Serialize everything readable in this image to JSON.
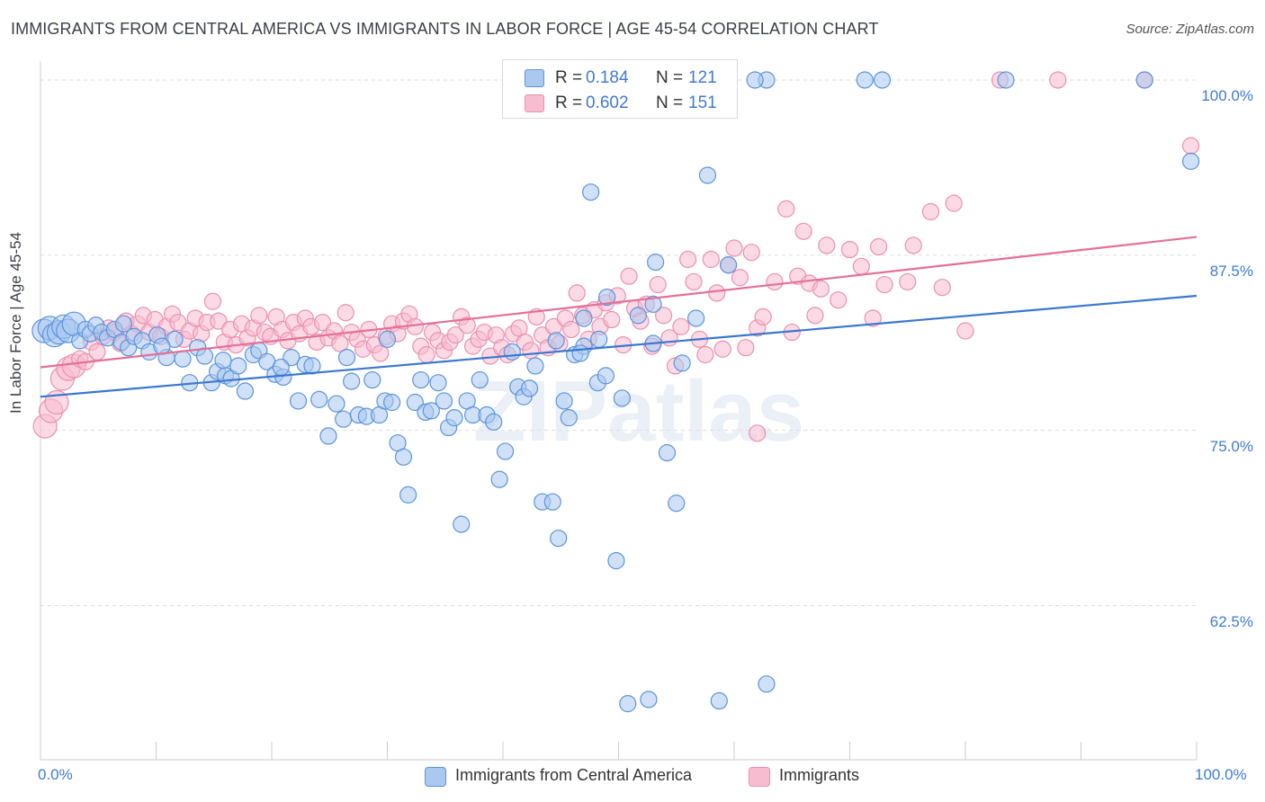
{
  "title": "IMMIGRANTS FROM CENTRAL AMERICA VS IMMIGRANTS IN LABOR FORCE | AGE 45-54 CORRELATION CHART",
  "source": "Source: ZipAtlas.com",
  "watermark": "ZIPatlas",
  "colors": {
    "blue_fill": "#aac8f0",
    "blue_stroke": "#5b93dc",
    "blue_line": "#3a78d0",
    "pink_fill": "#f7bcd0",
    "pink_stroke": "#ec8fb0",
    "pink_line": "#e46f98",
    "tick_text": "#3d7bd4",
    "grid": "#dddddd"
  },
  "stats": {
    "r_label": "R =",
    "n_label": "N =",
    "rows": [
      {
        "r": "0.184",
        "n": "121",
        "color": "blue"
      },
      {
        "r": "0.602",
        "n": "151",
        "color": "pink"
      }
    ]
  },
  "legend": {
    "series1": "Immigrants from Central America",
    "series2": "Immigrants"
  },
  "chart_data": {
    "type": "scatter",
    "title": "IMMIGRANTS FROM CENTRAL AMERICA VS IMMIGRANTS IN LABOR FORCE | AGE 45-54 CORRELATION CHART",
    "xlabel": "",
    "ylabel": "In Labor Force | Age 45-54",
    "xlim": [
      0,
      100
    ],
    "ylim": [
      51.5,
      102.5
    ],
    "x_tick_labels": [
      "0.0%",
      "100.0%"
    ],
    "y_ticks": [
      62.5,
      75.0,
      87.5,
      100.0
    ],
    "y_tick_labels": [
      "62.5%",
      "75.0%",
      "87.5%",
      "100.0%"
    ],
    "grid": "horizontal dashed",
    "legend_position": "bottom-center",
    "series": [
      {
        "name": "Immigrants from Central America",
        "color": "blue",
        "trend": {
          "x": [
            0,
            100
          ],
          "y": [
            77.4,
            84.6
          ]
        },
        "points": [
          [
            0.3,
            82.1
          ],
          [
            0.8,
            82.3
          ],
          [
            1.2,
            81.8
          ],
          [
            1.6,
            82.0
          ],
          [
            2.0,
            82.4
          ],
          [
            2.4,
            82.1
          ],
          [
            2.9,
            82.6
          ],
          [
            3.4,
            81.4
          ],
          [
            3.9,
            82.2
          ],
          [
            4.3,
            81.9
          ],
          [
            4.8,
            82.5
          ],
          [
            5.3,
            82.0
          ],
          [
            5.8,
            81.6
          ],
          [
            6.4,
            82.2
          ],
          [
            7.0,
            81.3
          ],
          [
            7.6,
            80.9
          ],
          [
            8.1,
            81.7
          ],
          [
            8.8,
            81.4
          ],
          [
            9.4,
            80.6
          ],
          [
            10.1,
            81.8
          ],
          [
            10.9,
            80.2
          ],
          [
            11.6,
            81.5
          ],
          [
            12.3,
            80.1
          ],
          [
            12.9,
            78.4
          ],
          [
            13.6,
            80.9
          ],
          [
            14.2,
            80.3
          ],
          [
            14.8,
            78.4
          ],
          [
            15.3,
            79.2
          ],
          [
            16.0,
            78.9
          ],
          [
            16.5,
            78.7
          ],
          [
            17.1,
            79.6
          ],
          [
            17.7,
            77.8
          ],
          [
            18.4,
            80.4
          ],
          [
            18.9,
            80.7
          ],
          [
            19.6,
            79.9
          ],
          [
            20.3,
            79.0
          ],
          [
            21.0,
            78.8
          ],
          [
            21.7,
            80.2
          ],
          [
            22.3,
            77.1
          ],
          [
            22.9,
            79.7
          ],
          [
            23.5,
            79.6
          ],
          [
            24.1,
            77.2
          ],
          [
            24.9,
            74.6
          ],
          [
            25.6,
            76.9
          ],
          [
            26.2,
            75.8
          ],
          [
            26.9,
            78.5
          ],
          [
            27.5,
            76.1
          ],
          [
            28.2,
            76.0
          ],
          [
            28.7,
            78.6
          ],
          [
            29.3,
            76.1
          ],
          [
            29.8,
            77.1
          ],
          [
            30.4,
            77.0
          ],
          [
            30.9,
            74.1
          ],
          [
            31.4,
            73.1
          ],
          [
            31.8,
            70.4
          ],
          [
            32.4,
            77.0
          ],
          [
            32.9,
            78.6
          ],
          [
            33.3,
            76.3
          ],
          [
            33.8,
            76.4
          ],
          [
            34.4,
            78.4
          ],
          [
            34.9,
            77.1
          ],
          [
            35.3,
            75.2
          ],
          [
            35.8,
            75.9
          ],
          [
            36.4,
            68.3
          ],
          [
            36.9,
            77.1
          ],
          [
            37.4,
            76.1
          ],
          [
            38.0,
            78.6
          ],
          [
            38.6,
            76.1
          ],
          [
            39.2,
            75.6
          ],
          [
            39.7,
            71.5
          ],
          [
            40.2,
            73.5
          ],
          [
            40.8,
            80.6
          ],
          [
            41.3,
            78.1
          ],
          [
            41.8,
            77.4
          ],
          [
            42.3,
            78.0
          ],
          [
            42.8,
            79.6
          ],
          [
            43.4,
            69.9
          ],
          [
            44.3,
            69.9
          ],
          [
            44.8,
            67.3
          ],
          [
            45.3,
            77.1
          ],
          [
            45.7,
            75.9
          ],
          [
            46.2,
            80.4
          ],
          [
            47.0,
            83.0
          ],
          [
            47.6,
            92.0
          ],
          [
            48.2,
            78.4
          ],
          [
            48.9,
            78.9
          ],
          [
            49.8,
            65.7
          ],
          [
            50.3,
            77.3
          ],
          [
            50.8,
            55.5
          ],
          [
            53.0,
            84.0
          ],
          [
            53.2,
            87.0
          ],
          [
            54.2,
            73.4
          ],
          [
            55.0,
            69.8
          ],
          [
            55.5,
            79.8
          ],
          [
            56.7,
            83.0
          ],
          [
            57.7,
            93.2
          ],
          [
            58.7,
            55.7
          ],
          [
            62.8,
            56.9
          ],
          [
            52.6,
            55.8
          ],
          [
            47.0,
            81.0
          ],
          [
            49.0,
            84.5
          ],
          [
            48.3,
            81.5
          ],
          [
            48.6,
            100.0
          ],
          [
            59.5,
            86.8
          ],
          [
            62.8,
            100.0
          ],
          [
            71.3,
            100.0
          ],
          [
            72.8,
            100.0
          ],
          [
            83.5,
            100.0
          ],
          [
            95.5,
            100.0
          ],
          [
            99.5,
            94.2
          ],
          [
            61.8,
            100.0
          ],
          [
            53.0,
            81.2
          ],
          [
            51.7,
            83.2
          ],
          [
            46.7,
            80.5
          ],
          [
            30.0,
            81.5
          ],
          [
            26.5,
            80.2
          ],
          [
            20.8,
            79.5
          ],
          [
            15.8,
            80.0
          ],
          [
            10.5,
            81.0
          ],
          [
            7.2,
            82.6
          ],
          [
            44.6,
            81.4
          ]
        ]
      },
      {
        "name": "Immigrants",
        "color": "pink",
        "trend": {
          "x": [
            0,
            100
          ],
          "y": [
            79.5,
            88.8
          ]
        },
        "points": [
          [
            0.4,
            75.3
          ],
          [
            0.9,
            76.4
          ],
          [
            1.4,
            77.0
          ],
          [
            1.9,
            78.7
          ],
          [
            2.4,
            79.4
          ],
          [
            2.9,
            79.6
          ],
          [
            3.4,
            80.1
          ],
          [
            3.9,
            79.9
          ],
          [
            4.4,
            81.3
          ],
          [
            4.9,
            80.6
          ],
          [
            5.4,
            81.7
          ],
          [
            5.9,
            82.3
          ],
          [
            6.4,
            82.0
          ],
          [
            6.9,
            81.2
          ],
          [
            7.4,
            82.8
          ],
          [
            7.9,
            81.9
          ],
          [
            8.4,
            82.6
          ],
          [
            8.9,
            83.2
          ],
          [
            9.4,
            82.0
          ],
          [
            9.9,
            82.9
          ],
          [
            10.4,
            81.7
          ],
          [
            10.9,
            82.4
          ],
          [
            11.4,
            83.3
          ],
          [
            11.9,
            82.7
          ],
          [
            12.4,
            81.5
          ],
          [
            12.9,
            82.1
          ],
          [
            13.4,
            83.0
          ],
          [
            13.9,
            81.9
          ],
          [
            14.4,
            82.7
          ],
          [
            14.9,
            84.2
          ],
          [
            15.4,
            82.8
          ],
          [
            15.9,
            81.3
          ],
          [
            16.4,
            82.2
          ],
          [
            16.9,
            81.1
          ],
          [
            17.4,
            82.6
          ],
          [
            17.9,
            81.6
          ],
          [
            18.4,
            82.3
          ],
          [
            18.9,
            83.2
          ],
          [
            19.4,
            82.0
          ],
          [
            19.9,
            81.7
          ],
          [
            20.4,
            83.1
          ],
          [
            20.9,
            82.2
          ],
          [
            21.4,
            81.4
          ],
          [
            21.9,
            82.7
          ],
          [
            22.4,
            81.9
          ],
          [
            22.9,
            83.0
          ],
          [
            23.4,
            82.4
          ],
          [
            23.9,
            81.3
          ],
          [
            24.4,
            82.7
          ],
          [
            24.9,
            81.6
          ],
          [
            25.4,
            82.1
          ],
          [
            25.9,
            81.2
          ],
          [
            26.4,
            83.4
          ],
          [
            26.9,
            82.0
          ],
          [
            27.4,
            81.5
          ],
          [
            27.9,
            80.8
          ],
          [
            28.4,
            82.2
          ],
          [
            28.9,
            81.1
          ],
          [
            29.4,
            80.5
          ],
          [
            29.9,
            81.7
          ],
          [
            30.4,
            82.6
          ],
          [
            30.9,
            81.9
          ],
          [
            31.4,
            82.8
          ],
          [
            31.9,
            83.3
          ],
          [
            32.4,
            82.4
          ],
          [
            32.9,
            81.0
          ],
          [
            33.4,
            80.4
          ],
          [
            33.9,
            82.0
          ],
          [
            34.4,
            81.4
          ],
          [
            34.9,
            80.7
          ],
          [
            35.4,
            81.3
          ],
          [
            35.9,
            81.8
          ],
          [
            36.4,
            83.1
          ],
          [
            36.9,
            82.5
          ],
          [
            37.4,
            81.0
          ],
          [
            37.9,
            81.5
          ],
          [
            38.4,
            82.0
          ],
          [
            38.9,
            80.3
          ],
          [
            39.4,
            81.8
          ],
          [
            39.9,
            80.9
          ],
          [
            40.4,
            80.4
          ],
          [
            40.9,
            81.9
          ],
          [
            41.4,
            82.3
          ],
          [
            41.9,
            81.3
          ],
          [
            42.4,
            80.7
          ],
          [
            42.9,
            83.1
          ],
          [
            43.4,
            81.8
          ],
          [
            43.9,
            80.9
          ],
          [
            44.4,
            82.4
          ],
          [
            44.9,
            81.2
          ],
          [
            45.4,
            83.0
          ],
          [
            45.9,
            82.2
          ],
          [
            46.4,
            84.8
          ],
          [
            46.9,
            83.2
          ],
          [
            47.4,
            81.5
          ],
          [
            47.9,
            83.6
          ],
          [
            48.4,
            82.4
          ],
          [
            48.9,
            84.1
          ],
          [
            49.4,
            82.9
          ],
          [
            49.9,
            84.6
          ],
          [
            50.4,
            81.1
          ],
          [
            50.9,
            86.0
          ],
          [
            51.4,
            83.7
          ],
          [
            51.9,
            82.8
          ],
          [
            52.4,
            84.0
          ],
          [
            52.9,
            81.0
          ],
          [
            53.4,
            85.4
          ],
          [
            53.9,
            83.2
          ],
          [
            54.4,
            81.6
          ],
          [
            54.9,
            79.6
          ],
          [
            55.4,
            82.4
          ],
          [
            56.0,
            87.2
          ],
          [
            56.5,
            85.6
          ],
          [
            57.0,
            81.5
          ],
          [
            57.5,
            80.4
          ],
          [
            58.0,
            87.2
          ],
          [
            58.5,
            84.8
          ],
          [
            59.0,
            80.8
          ],
          [
            59.5,
            86.8
          ],
          [
            60.0,
            88.0
          ],
          [
            60.5,
            85.9
          ],
          [
            61.0,
            80.9
          ],
          [
            61.5,
            87.7
          ],
          [
            62.0,
            82.3
          ],
          [
            62.5,
            83.1
          ],
          [
            63.5,
            85.6
          ],
          [
            64.5,
            90.8
          ],
          [
            65.0,
            82.0
          ],
          [
            65.5,
            86.0
          ],
          [
            66.0,
            89.2
          ],
          [
            66.5,
            85.5
          ],
          [
            67.0,
            83.2
          ],
          [
            67.5,
            85.1
          ],
          [
            68.0,
            88.2
          ],
          [
            69.0,
            84.3
          ],
          [
            70.0,
            87.9
          ],
          [
            71.0,
            86.7
          ],
          [
            72.0,
            83.0
          ],
          [
            72.5,
            88.1
          ],
          [
            73.0,
            85.4
          ],
          [
            75.0,
            85.6
          ],
          [
            75.5,
            88.2
          ],
          [
            77.0,
            90.6
          ],
          [
            78.0,
            85.2
          ],
          [
            79.0,
            91.2
          ],
          [
            80.0,
            82.1
          ],
          [
            62.0,
            74.8
          ],
          [
            83.0,
            100.0
          ],
          [
            88.0,
            100.0
          ],
          [
            99.5,
            95.3
          ],
          [
            95.5,
            100.0
          ]
        ]
      }
    ]
  }
}
